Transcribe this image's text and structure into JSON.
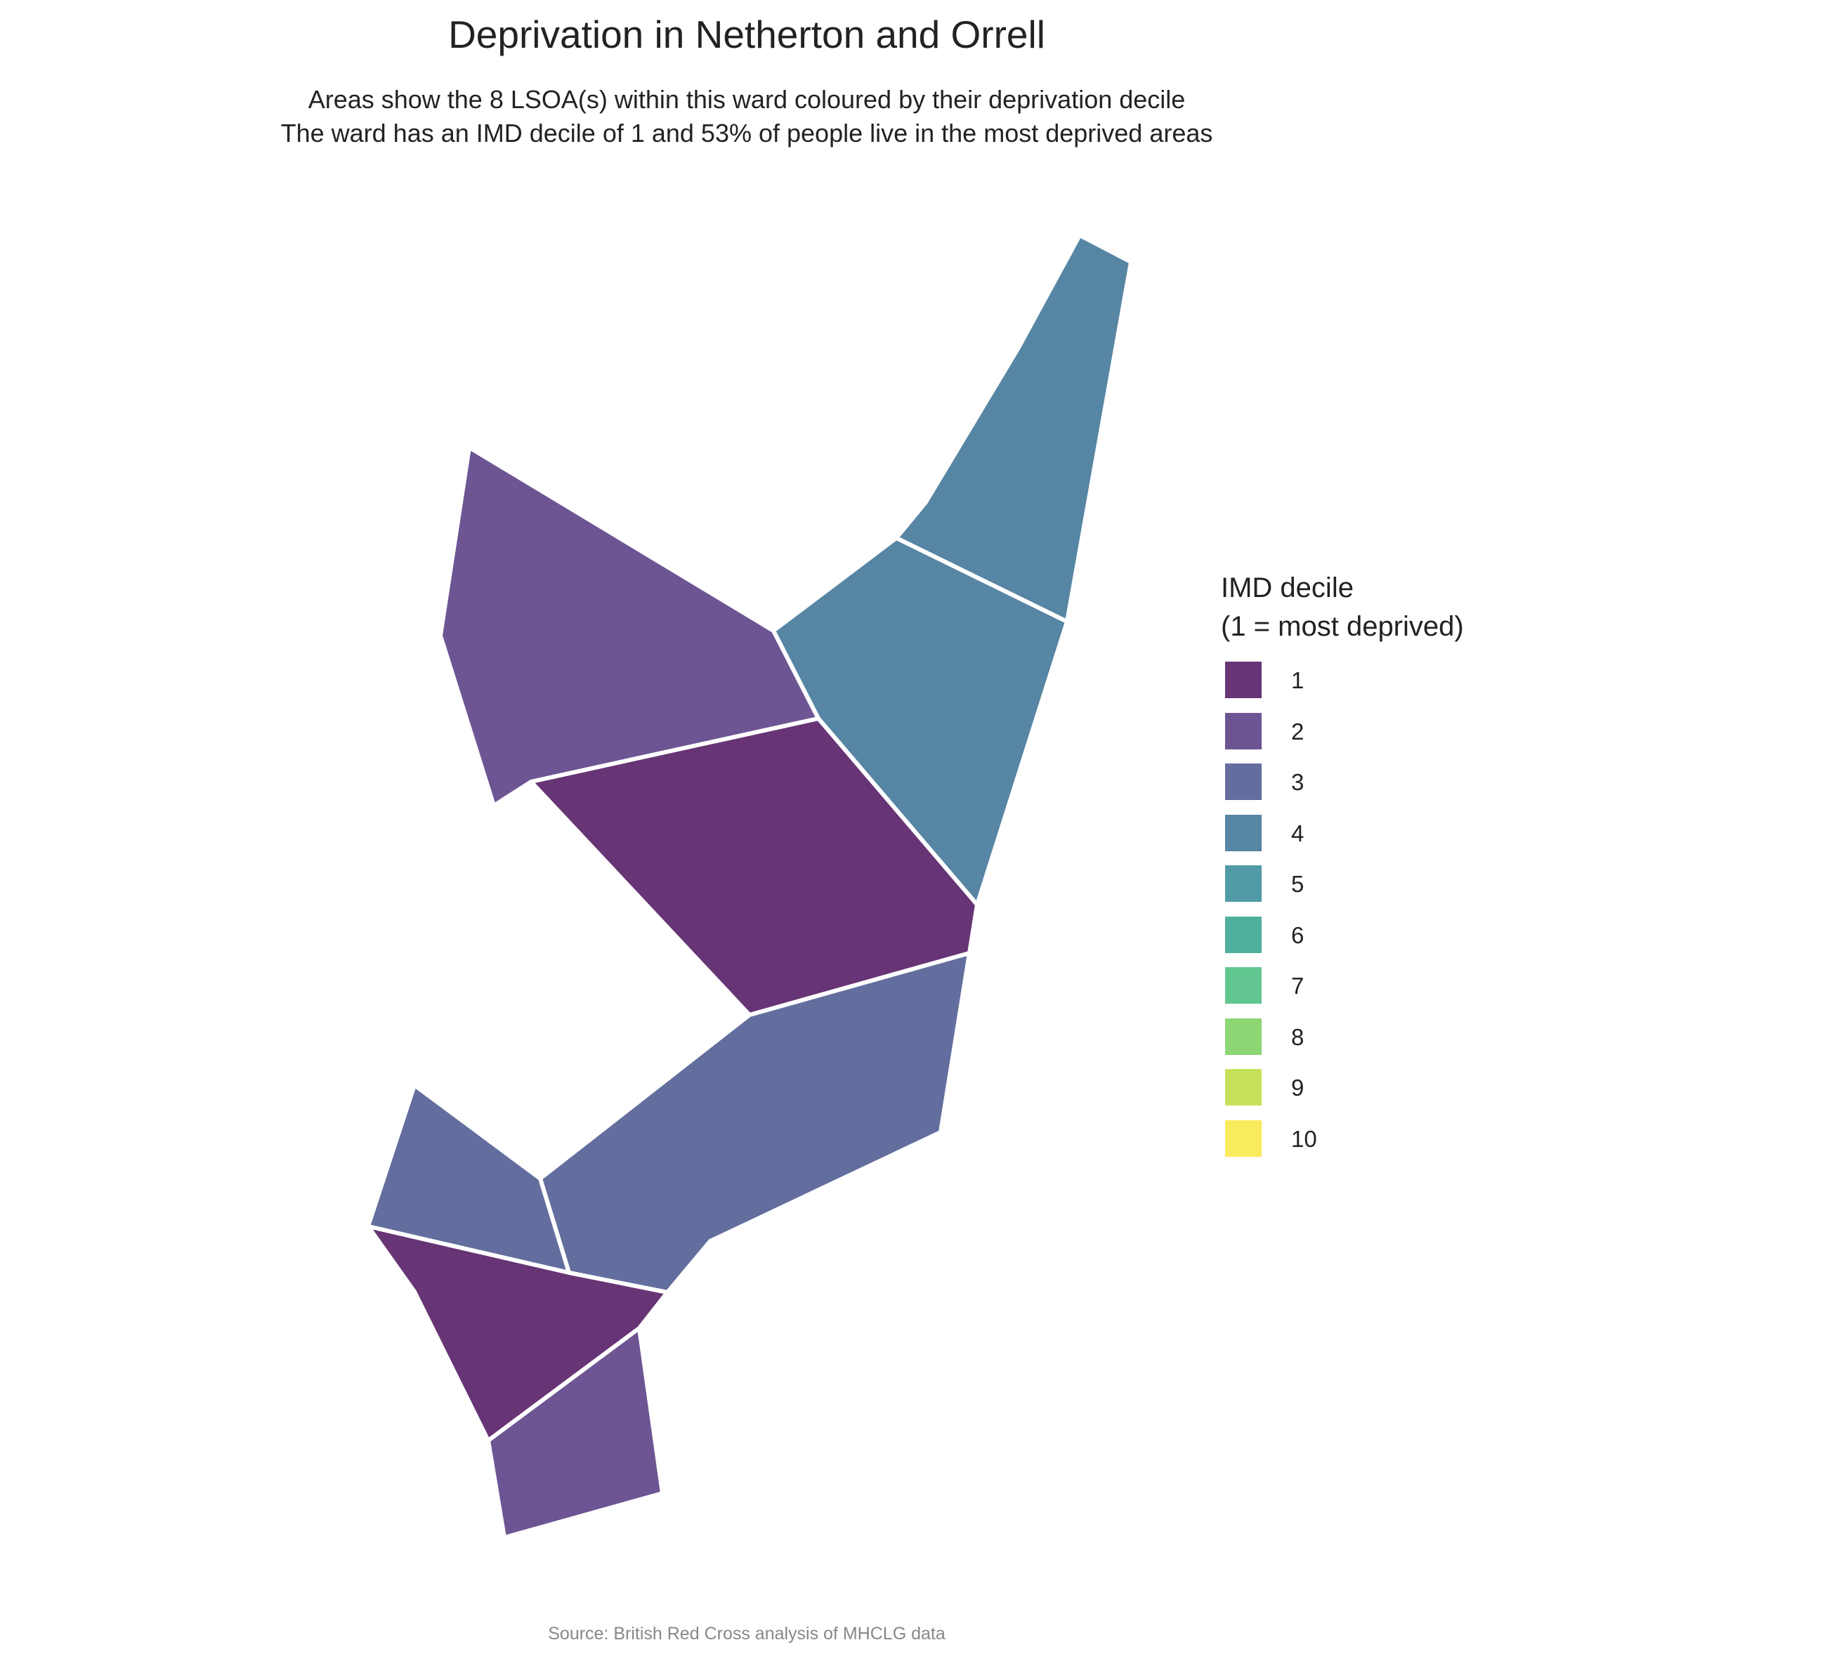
{
  "title": "Deprivation in Netherton and Orrell",
  "subtitle": {
    "line1": "Areas show the 8 LSOA(s) within this ward coloured by their deprivation decile",
    "line2": "The ward has an IMD decile of 1 and 53% of people live in the most deprived areas"
  },
  "legend": {
    "title_line1": "IMD decile",
    "title_line2": "(1 = most deprived)",
    "items": [
      {
        "label": "1",
        "color": "#673475"
      },
      {
        "label": "2",
        "color": "#6d5593"
      },
      {
        "label": "3",
        "color": "#636e9e"
      },
      {
        "label": "4",
        "color": "#5785a4"
      },
      {
        "label": "5",
        "color": "#519ba6"
      },
      {
        "label": "6",
        "color": "#50b09e"
      },
      {
        "label": "7",
        "color": "#62c690"
      },
      {
        "label": "8",
        "color": "#8dd674"
      },
      {
        "label": "9",
        "color": "#c6e25a"
      },
      {
        "label": "10",
        "color": "#faea5d"
      }
    ]
  },
  "areas": [
    {
      "name": "lsoa-north-east-upper",
      "decile": 4
    },
    {
      "name": "lsoa-north-east-middle",
      "decile": 4
    },
    {
      "name": "lsoa-north-west",
      "decile": 2
    },
    {
      "name": "lsoa-central",
      "decile": 1
    },
    {
      "name": "lsoa-south-east",
      "decile": 3
    },
    {
      "name": "lsoa-south-west",
      "decile": 3
    },
    {
      "name": "lsoa-south",
      "decile": 1
    },
    {
      "name": "lsoa-far-south",
      "decile": 2
    }
  ],
  "source": "Source: British Red Cross analysis of MHCLG data"
}
